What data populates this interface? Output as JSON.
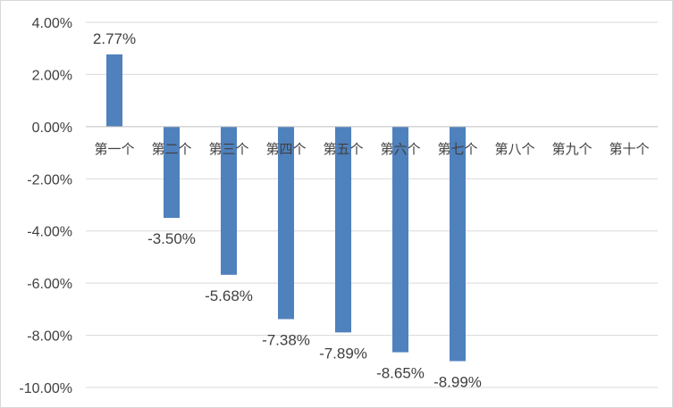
{
  "chart_data": {
    "type": "bar",
    "title": "",
    "xlabel": "",
    "ylabel": "",
    "categories": [
      "第一个",
      "第二个",
      "第三个",
      "第四个",
      "第五个",
      "第六个",
      "第七个",
      "第八个",
      "第九个",
      "第十个"
    ],
    "values": [
      2.77,
      -3.5,
      -5.68,
      -7.38,
      -7.89,
      -8.65,
      -8.99,
      null,
      null,
      null
    ],
    "data_labels": [
      "2.77%",
      "-3.50%",
      "-5.68%",
      "-7.38%",
      "-7.89%",
      "-8.65%",
      "-8.99%",
      "",
      "",
      ""
    ],
    "ylim": [
      -10,
      4
    ],
    "y_ticks": [
      4,
      2,
      0,
      -2,
      -4,
      -6,
      -8,
      -10
    ],
    "y_tick_labels": [
      "4.00%",
      "2.00%",
      "0.00%",
      "-2.00%",
      "-4.00%",
      "-6.00%",
      "-8.00%",
      "-10.00%"
    ],
    "grid": true,
    "legend": "none",
    "bar_color": "#4f81bd"
  }
}
